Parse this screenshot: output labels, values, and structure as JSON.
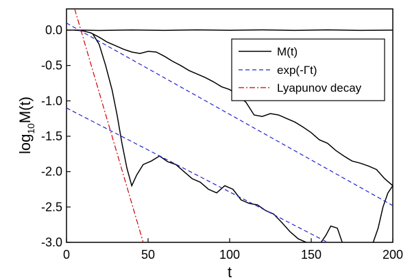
{
  "chart_data": {
    "type": "line",
    "xlabel": "t",
    "ylabel_main": "log",
    "ylabel_sub": "10",
    "ylabel_tail": "M(t)",
    "xlim": [
      0,
      200
    ],
    "ylim": [
      -3.0,
      0.3
    ],
    "xticks": [
      0,
      50,
      100,
      150,
      200
    ],
    "xtick_labels": [
      "0",
      "50",
      "100",
      "150",
      "200"
    ],
    "yticks": [
      0.0,
      -0.5,
      -1.0,
      -1.5,
      -2.0,
      -2.5,
      -3.0
    ],
    "ytick_labels": [
      "0.0",
      "-0.5",
      "-1.0",
      "-1.5",
      "-2.0",
      "-2.5",
      "-3.0"
    ],
    "grid": false,
    "legend_placement": "top-right",
    "legend": [
      {
        "label": "M(t)",
        "color": "#000000",
        "dash": "solid"
      },
      {
        "label": "exp(-Γt)",
        "color": "#2020d0",
        "dash": "dashed"
      },
      {
        "label": "Lyapunov decay",
        "color": "#cc0000",
        "dash": "dashdot"
      }
    ],
    "series": [
      {
        "style": "black-solid",
        "color": "#000000",
        "points": [
          [
            0,
            0
          ],
          [
            10,
            0
          ],
          [
            20,
            -0.005
          ],
          [
            40,
            0.003
          ],
          [
            60,
            -0.004
          ],
          [
            80,
            0.004
          ],
          [
            100,
            -0.003
          ],
          [
            120,
            0.004
          ],
          [
            140,
            -0.004
          ],
          [
            160,
            0.004
          ],
          [
            180,
            -0.004
          ],
          [
            200,
            0.0
          ]
        ]
      },
      {
        "style": "black-solid",
        "color": "#000000",
        "points": [
          [
            5,
            0.0
          ],
          [
            10,
            -0.01
          ],
          [
            15,
            -0.04
          ],
          [
            20,
            -0.1
          ],
          [
            25,
            -0.17
          ],
          [
            30,
            -0.22
          ],
          [
            35,
            -0.27
          ],
          [
            40,
            -0.31
          ],
          [
            45,
            -0.33
          ],
          [
            50,
            -0.3
          ],
          [
            55,
            -0.31
          ],
          [
            60,
            -0.37
          ],
          [
            65,
            -0.44
          ],
          [
            70,
            -0.5
          ],
          [
            75,
            -0.57
          ],
          [
            80,
            -0.62
          ],
          [
            85,
            -0.67
          ],
          [
            90,
            -0.73
          ],
          [
            95,
            -0.8
          ],
          [
            100,
            -0.84
          ],
          [
            105,
            -0.92
          ],
          [
            110,
            -1.02
          ],
          [
            115,
            -1.2
          ],
          [
            120,
            -1.22
          ],
          [
            125,
            -1.18
          ],
          [
            130,
            -1.2
          ],
          [
            135,
            -1.25
          ],
          [
            140,
            -1.3
          ],
          [
            145,
            -1.37
          ],
          [
            150,
            -1.45
          ],
          [
            155,
            -1.55
          ],
          [
            160,
            -1.6
          ],
          [
            165,
            -1.7
          ],
          [
            170,
            -1.78
          ],
          [
            175,
            -1.85
          ],
          [
            180,
            -1.88
          ],
          [
            185,
            -1.92
          ],
          [
            190,
            -1.97
          ],
          [
            195,
            -2.1
          ],
          [
            200,
            -2.2
          ]
        ]
      },
      {
        "style": "black-solid",
        "color": "#000000",
        "points": [
          [
            16,
            -0.05
          ],
          [
            20,
            -0.2
          ],
          [
            24,
            -0.5
          ],
          [
            28,
            -0.85
          ],
          [
            31,
            -1.2
          ],
          [
            34,
            -1.6
          ],
          [
            37,
            -1.95
          ],
          [
            40,
            -2.2
          ],
          [
            43,
            -2.05
          ],
          [
            47,
            -1.9
          ],
          [
            52,
            -1.85
          ],
          [
            57,
            -1.78
          ],
          [
            62,
            -1.86
          ],
          [
            67,
            -1.9
          ],
          [
            72,
            -2.0
          ],
          [
            77,
            -2.1
          ],
          [
            82,
            -2.15
          ],
          [
            87,
            -2.25
          ],
          [
            92,
            -2.3
          ],
          [
            97,
            -2.2
          ],
          [
            102,
            -2.25
          ],
          [
            107,
            -2.4
          ],
          [
            112,
            -2.45
          ],
          [
            117,
            -2.47
          ],
          [
            122,
            -2.55
          ],
          [
            127,
            -2.6
          ],
          [
            132,
            -2.72
          ],
          [
            137,
            -2.85
          ],
          [
            142,
            -2.95
          ],
          [
            147,
            -3.0
          ]
        ]
      },
      {
        "style": "black-solid",
        "color": "#000000",
        "points": [
          [
            156,
            -3.0
          ],
          [
            159,
            -2.9
          ],
          [
            162,
            -2.77
          ],
          [
            166,
            -2.8
          ],
          [
            169,
            -3.0
          ]
        ]
      },
      {
        "style": "black-solid",
        "color": "#000000",
        "points": [
          [
            188,
            -3.0
          ],
          [
            191,
            -2.8
          ],
          [
            194,
            -2.5
          ],
          [
            197,
            -2.3
          ],
          [
            200,
            -2.2
          ]
        ]
      },
      {
        "style": "blue-dashed-upper",
        "color": "#2020d0",
        "points": [
          [
            0,
            0.1
          ],
          [
            200,
            -2.48
          ]
        ]
      },
      {
        "style": "blue-dashed-lower",
        "color": "#2020d0",
        "points": [
          [
            0,
            -1.1
          ],
          [
            160,
            -3.0
          ]
        ]
      },
      {
        "style": "red-dashdot",
        "color": "#cc0000",
        "points": [
          [
            5,
            0.3
          ],
          [
            47,
            -3.0
          ]
        ]
      }
    ]
  }
}
